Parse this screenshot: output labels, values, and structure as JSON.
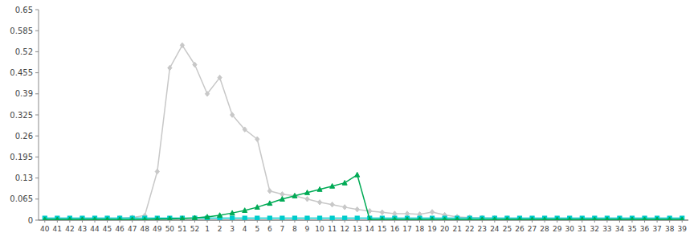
{
  "chart_data": {
    "type": "line",
    "categories": [
      "40",
      "41",
      "42",
      "43",
      "44",
      "45",
      "46",
      "47",
      "48",
      "49",
      "50",
      "51",
      "52",
      "1",
      "2",
      "3",
      "4",
      "5",
      "6",
      "7",
      "8",
      "9",
      "10",
      "11",
      "12",
      "13",
      "14",
      "15",
      "16",
      "17",
      "18",
      "19",
      "20",
      "21",
      "22",
      "23",
      "24",
      "25",
      "26",
      "27",
      "28",
      "29",
      "30",
      "31",
      "32",
      "33",
      "34",
      "35",
      "36",
      "37",
      "38",
      "39"
    ],
    "series": [
      {
        "color": "#c8c8c8",
        "marker": "diamond",
        "line_style": "solid",
        "values": [
          0.003,
          0.003,
          0.003,
          0.003,
          0.003,
          0.005,
          0.006,
          0.008,
          0.014,
          0.15,
          0.47,
          0.54,
          0.48,
          0.39,
          0.44,
          0.325,
          0.28,
          0.25,
          0.09,
          0.08,
          0.075,
          0.065,
          0.055,
          0.048,
          0.04,
          0.033,
          0.028,
          0.024,
          0.02,
          0.02,
          0.018,
          0.025,
          0.016,
          0.01,
          0.008,
          0.007,
          0.006,
          0.005,
          0.004,
          0.004,
          0.003,
          0.003,
          0.003,
          0.003,
          0.003,
          0.003,
          0.003,
          0.003,
          0.003,
          0.003,
          0.003,
          0.003
        ]
      },
      {
        "color": "#00cccc",
        "marker": "square",
        "line_style": "solid",
        "values": [
          0.006,
          0.006,
          0.006,
          0.006,
          0.006,
          0.006,
          0.006,
          0.006,
          0.006,
          0.006,
          0.006,
          0.006,
          0.006,
          0.006,
          0.006,
          0.006,
          0.006,
          0.006,
          0.006,
          0.006,
          0.006,
          0.006,
          0.006,
          0.006,
          0.006,
          0.006,
          0.006,
          0.006,
          0.006,
          0.006,
          0.006,
          0.006,
          0.006,
          0.006,
          0.006,
          0.006,
          0.006,
          0.006,
          0.006,
          0.006,
          0.006,
          0.006,
          0.006,
          0.006,
          0.006,
          0.006,
          0.006,
          0.006,
          0.006,
          0.006,
          0.006,
          0.006
        ]
      },
      {
        "color": "#00aa55",
        "marker": "triangle",
        "line_style": "solid",
        "values": [
          0.002,
          0.002,
          0.002,
          0.002,
          0.002,
          0.002,
          0.002,
          0.002,
          0.002,
          0.003,
          0.004,
          0.005,
          0.007,
          0.01,
          0.015,
          0.022,
          0.03,
          0.04,
          0.052,
          0.065,
          0.075,
          0.085,
          0.095,
          0.105,
          0.115,
          0.14,
          0.002,
          0.002,
          0.002,
          0.002,
          0.002,
          0.002,
          0.002,
          0.002,
          0.002,
          0.002,
          0.002,
          0.002,
          0.002,
          0.002,
          0.002,
          0.002,
          0.002,
          0.002,
          0.002,
          0.002,
          0.002,
          0.002,
          0.002,
          0.002,
          0.002,
          0.002
        ]
      }
    ],
    "ylim": [
      0,
      0.65
    ],
    "yticks": [
      0,
      0.065,
      0.13,
      0.195,
      0.26,
      0.325,
      0.39,
      0.455,
      0.52,
      0.585,
      0.65
    ],
    "grid": false
  }
}
